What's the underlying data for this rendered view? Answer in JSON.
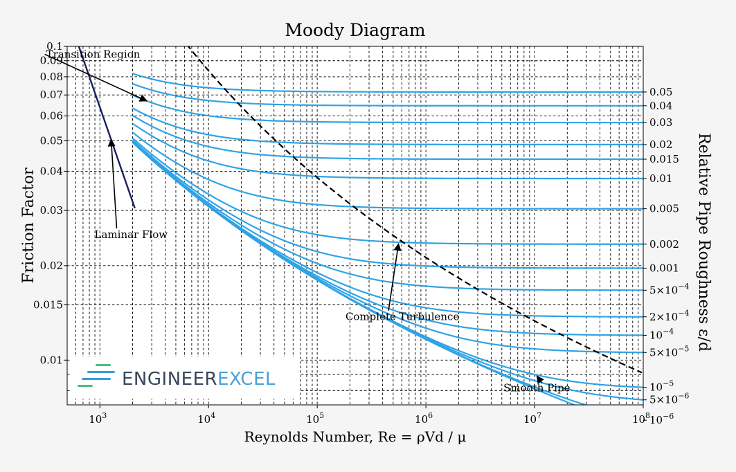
{
  "chart_data": {
    "type": "line",
    "title": "Moody Diagram",
    "xlabel": "Reynolds Number, Re = ρVd / μ",
    "ylabel": "Friction Factor",
    "right_label": "Relative Pipe Roughness ε/d",
    "xscale": "log",
    "yscale": "log",
    "xlim": [
      500,
      100000000
    ],
    "ylim": [
      0.0072,
      0.1
    ],
    "grid": true,
    "x_ticks": [
      {
        "exp": "3",
        "value": 1000
      },
      {
        "exp": "4",
        "value": 10000
      },
      {
        "exp": "5",
        "value": 100000
      },
      {
        "exp": "6",
        "value": 1000000
      },
      {
        "exp": "7",
        "value": 10000000
      },
      {
        "exp": "8",
        "value": 100000000
      }
    ],
    "x_tick_base": "10",
    "y_ticks": [
      {
        "label": "0.1",
        "value": 0.1
      },
      {
        "label": "0.09",
        "value": 0.09
      },
      {
        "label": "0.08",
        "value": 0.08
      },
      {
        "label": "0.07",
        "value": 0.07
      },
      {
        "label": "0.06",
        "value": 0.06
      },
      {
        "label": "0.05",
        "value": 0.05
      },
      {
        "label": "0.04",
        "value": 0.04
      },
      {
        "label": "0.03",
        "value": 0.03
      },
      {
        "label": "0.02",
        "value": 0.02
      },
      {
        "label": "0.015",
        "value": 0.015
      },
      {
        "label": "0.01",
        "value": 0.01
      }
    ],
    "laminar": {
      "re_min": 640,
      "re_max": 2100,
      "color": "#1a1f5e"
    },
    "turbulent": {
      "re_min": 2000,
      "re_max": 100000000,
      "color": "#2fa3e6"
    },
    "roughness_series": [
      {
        "value": 0.05,
        "label": "0.05"
      },
      {
        "value": 0.04,
        "label": "0.04"
      },
      {
        "value": 0.03,
        "label": "0.03"
      },
      {
        "value": 0.02,
        "label": "0.02"
      },
      {
        "value": 0.015,
        "label": "0.015"
      },
      {
        "value": 0.01,
        "label": "0.01"
      },
      {
        "value": 0.005,
        "label": "0.005"
      },
      {
        "value": 0.002,
        "label": "0.002"
      },
      {
        "value": 0.001,
        "label": "0.001"
      },
      {
        "value": 0.0005,
        "label": "5×10",
        "exp": "−4"
      },
      {
        "value": 0.0002,
        "label": "2×10",
        "exp": "−4"
      },
      {
        "value": 0.0001,
        "label": "10",
        "exp": "−4"
      },
      {
        "value": 5e-05,
        "label": "5×10",
        "exp": "−5"
      },
      {
        "value": 1e-05,
        "label": "10",
        "exp": "−5"
      },
      {
        "value": 5e-06,
        "label": "5×10",
        "exp": "−6"
      },
      {
        "value": 1e-06,
        "label": "10",
        "exp": "−6"
      },
      {
        "value": 0,
        "label": ""
      }
    ],
    "complete_turbulence": {
      "re_max": 100000000,
      "color": "#000"
    },
    "annotations": [
      {
        "text": "Transition Region",
        "text_x": 320,
        "text_y": 0.092,
        "arrow_x": 2700,
        "arrow_y": 0.067
      },
      {
        "text": "Laminar Flow",
        "text_x": 1300,
        "text_y": 0.0245,
        "arrow_x": 1270,
        "arrow_y": 0.0505
      },
      {
        "text": "Complete Turbulence",
        "text_x": 440000,
        "text_y": 0.0134,
        "arrow_x": 560000,
        "arrow_y": 0.0235
      },
      {
        "text": "Smooth Pipe",
        "text_x": 8500000,
        "text_y": 0.00795,
        "arrow_x": 10500000,
        "arrow_y": 0.0089
      }
    ]
  },
  "logo": {
    "part1": "ENGINEER",
    "part2": "EXCEL",
    "color1": "#37465a",
    "color2": "#4a9fd8",
    "stripe_green": "#4cbf7a",
    "stripe_blue": "#3a9bdc"
  }
}
